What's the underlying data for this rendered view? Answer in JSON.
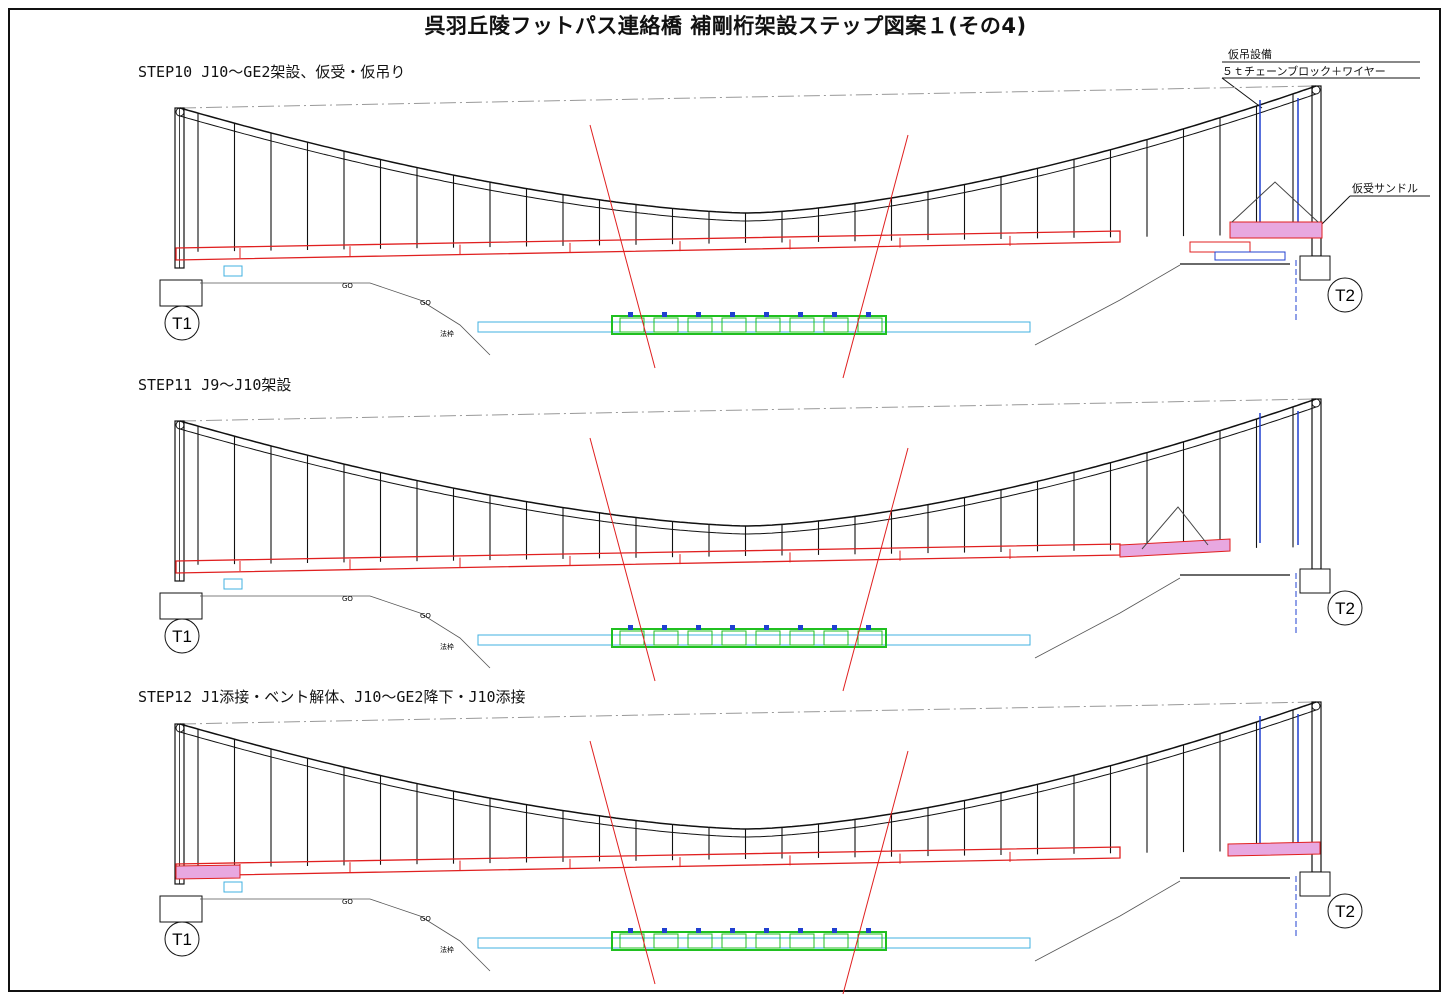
{
  "title": "呉羽丘陵フットパス連絡橋 補剛桁架設ステップ図案１(その4)",
  "steps": [
    {
      "label": "STEP10  J10～GE2架設、仮受・仮吊り"
    },
    {
      "label": "STEP11  J9～J10架設"
    },
    {
      "label": "STEP12  J1添接・ベント解体、J10～GE2降下・J10添接"
    }
  ],
  "annotations": {
    "hoist_title": "仮吊設備",
    "hoist_detail": "５ｔチェーンブロック＋ワイヤー",
    "saddle": "仮受サンドル"
  },
  "towers": {
    "left": "T1",
    "right": "T2"
  },
  "ground_labels": {
    "gl1": "GO",
    "gl2": "GO",
    "mark": "法枠"
  },
  "colors": {
    "cable": "#111111",
    "girder": "#e02020",
    "highlight": "#e8a8e0",
    "ground": "#555555",
    "blue": "#2040d0",
    "green": "#20c020",
    "cyan": "#40b0e0"
  }
}
